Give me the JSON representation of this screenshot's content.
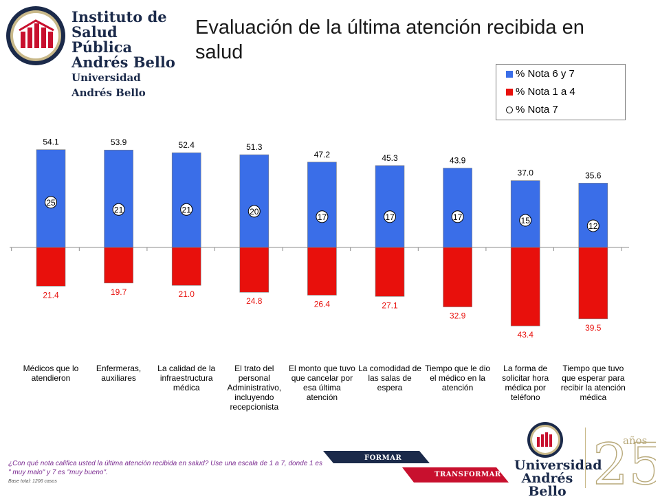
{
  "logo": {
    "line1": "Instituto de",
    "line2": "Salud Pública",
    "line3": "Andrés Bello",
    "line4": "Universidad Andrés Bello"
  },
  "title": "Evaluación de la última atención recibida en salud",
  "legend": [
    {
      "label": "% Nota 6 y 7",
      "color": "#3a6ee8",
      "shape": "square"
    },
    {
      "label": "% Nota 1 a 4",
      "color": "#e8100c",
      "shape": "square"
    },
    {
      "label": "% Nota 7",
      "color": "#ffffff",
      "shape": "circle"
    }
  ],
  "chart_data": {
    "type": "bar",
    "categories": [
      "Médicos que lo atendieron",
      "Enfermeras, auxiliares",
      "La calidad de la infraestructura médica",
      "El trato del personal Administrativo, incluyendo recepcionista",
      "El monto que tuvo que cancelar por esa última atención",
      "La comodidad de las salas de espera",
      "Tiempo que le dio el médico en la atención",
      "La forma de solicitar hora médica por teléfono",
      "Tiempo que tuvo que esperar para recibir la atención médica"
    ],
    "series": [
      {
        "name": "% Nota 6 y 7",
        "values": [
          54.1,
          53.9,
          52.4,
          51.3,
          47.2,
          45.3,
          43.9,
          37.0,
          35.6
        ],
        "labels": [
          "54.1",
          "53.9",
          "52.4",
          "51.3",
          "47.2",
          "45.3",
          "43.9",
          "37.0",
          "35.6"
        ],
        "color": "#3a6ee8"
      },
      {
        "name": "% Nota 1 a 4",
        "values": [
          21.4,
          19.7,
          21.0,
          24.8,
          26.4,
          27.1,
          32.9,
          43.4,
          39.5
        ],
        "labels": [
          "21.4",
          "19.7",
          "21.0",
          "24.8",
          "26.4",
          "27.1",
          "32.9",
          "43.4",
          "39.5"
        ],
        "color": "#e8100c"
      },
      {
        "name": "% Nota 7",
        "values": [
          25,
          21,
          21,
          20,
          17,
          17,
          17,
          15,
          12
        ],
        "marker": "circle"
      }
    ],
    "negative_series": "% Nota 1 a 4",
    "ylim": [
      -45,
      60
    ],
    "grid": false,
    "legend_position": "top-right"
  },
  "footer": {
    "question": "¿Con qué nota califica usted la última atención recibida en salud? Use una escala de 1 a 7, donde 1 es \" muy malo\" y 7 es \"muy bueno\".",
    "base": "Base total: 1206 casos",
    "ribbon_top": "FORMAR",
    "ribbon_bottom": "TRANSFORMAR",
    "university": "Universidad Andrés Bello",
    "anniversary_number": "25",
    "anniversary_word": "años",
    "brand_navy": "#1b2a4a",
    "brand_red": "#c8102e",
    "brand_gold": "#b8a97a"
  }
}
